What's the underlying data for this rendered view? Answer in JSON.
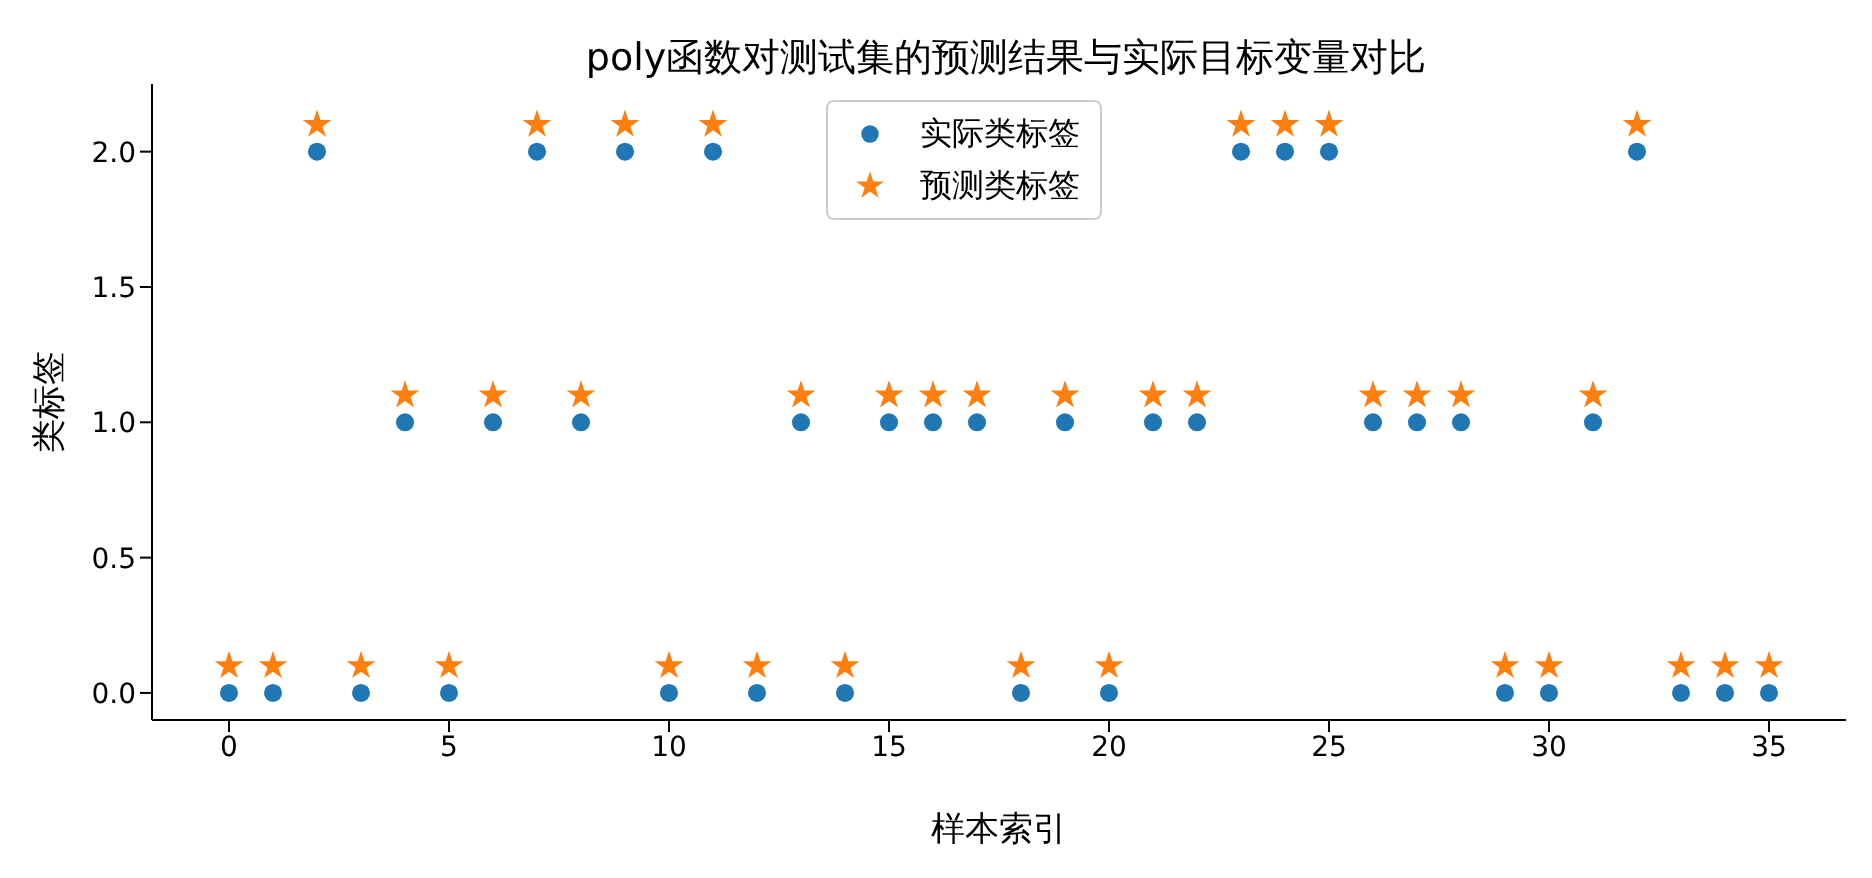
{
  "chart_data": {
    "type": "scatter",
    "title": "poly函数对测试集的预测结果与实际目标变量对比",
    "xlabel": "样本索引",
    "ylabel": "类标签",
    "x": [
      0,
      1,
      2,
      3,
      4,
      5,
      6,
      7,
      8,
      9,
      10,
      11,
      12,
      13,
      14,
      15,
      16,
      17,
      18,
      19,
      20,
      21,
      22,
      23,
      24,
      25,
      26,
      27,
      28,
      29,
      30,
      31,
      32,
      33,
      34,
      35
    ],
    "series": [
      {
        "name": "实际类标签",
        "color": "#1f77b4",
        "marker": "circle",
        "values": [
          0,
          0,
          2,
          0,
          1,
          0,
          1,
          2,
          1,
          2,
          0,
          2,
          0,
          1,
          0,
          1,
          1,
          1,
          0,
          1,
          0,
          1,
          1,
          2,
          2,
          2,
          1,
          1,
          1,
          0,
          0,
          1,
          2,
          0,
          0,
          0
        ]
      },
      {
        "name": "预测类标签",
        "color": "#ff7f0e",
        "marker": "star",
        "values": [
          0.1,
          0.1,
          2.1,
          0.1,
          1.1,
          0.1,
          1.1,
          2.1,
          1.1,
          2.1,
          0.1,
          2.1,
          0.1,
          1.1,
          0.1,
          1.1,
          1.1,
          1.1,
          0.1,
          1.1,
          0.1,
          1.1,
          1.1,
          2.1,
          2.1,
          2.1,
          1.1,
          1.1,
          1.1,
          0.1,
          0.1,
          1.1,
          2.1,
          0.1,
          0.1,
          0.1
        ]
      }
    ],
    "xlim": [
      -1.75,
      36.75
    ],
    "xticks": [
      0,
      5,
      10,
      15,
      20,
      25,
      30,
      35
    ],
    "ylim": [
      -0.1,
      2.25
    ],
    "yticks": [
      {
        "value": 0,
        "label": "0.0"
      },
      {
        "value": 0.5,
        "label": "0.5"
      },
      {
        "value": 1,
        "label": "1.0"
      },
      {
        "value": 1.5,
        "label": "1.5"
      },
      {
        "value": 2,
        "label": "2.0"
      }
    ],
    "legend": "top",
    "grid": false
  }
}
